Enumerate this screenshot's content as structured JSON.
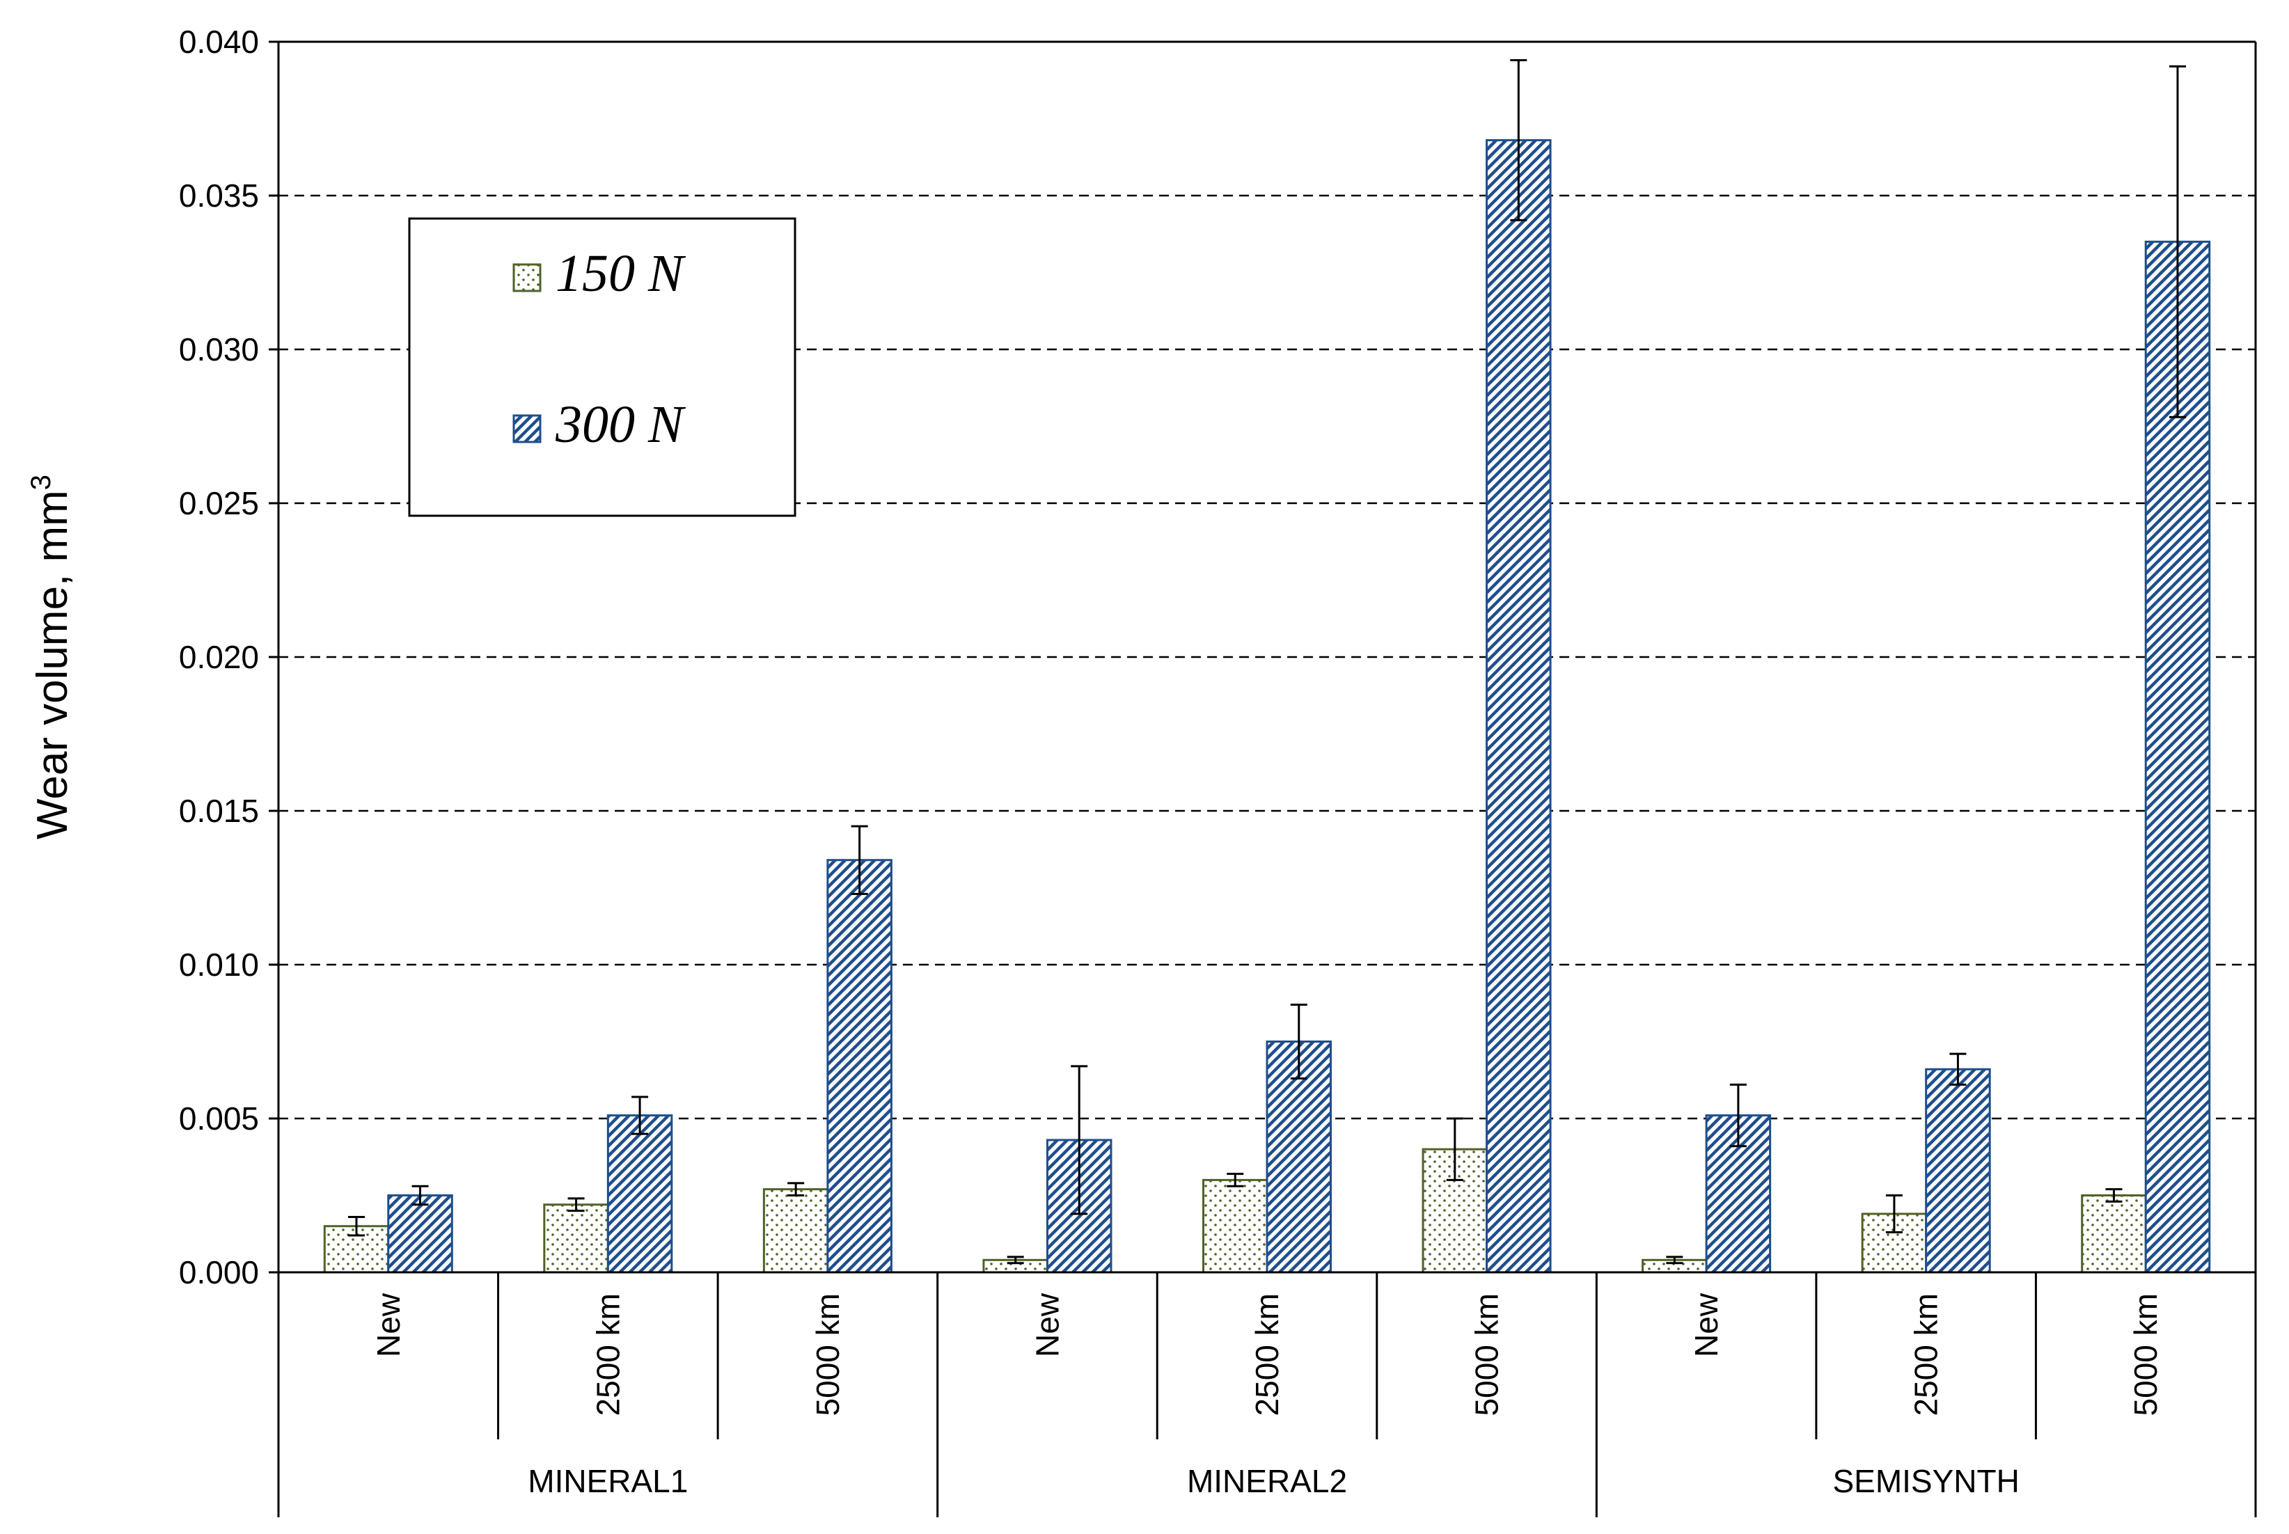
{
  "chart_data": {
    "type": "bar",
    "ylabel": "Wear volume, mm",
    "ylabel_sup": "3",
    "ylim": [
      0,
      0.04
    ],
    "yticks": [
      "0.000",
      "0.005",
      "0.010",
      "0.015",
      "0.020",
      "0.025",
      "0.030",
      "0.035",
      "0.040"
    ],
    "ytick_values": [
      0,
      0.005,
      0.01,
      0.015,
      0.02,
      0.025,
      0.03,
      0.035,
      0.04
    ],
    "grid": "horizontal dashed",
    "legend_position": "upper-left",
    "groups": [
      "MINERAL1",
      "MINERAL2",
      "SEMISYNTH"
    ],
    "categories": [
      "New",
      "2500 km",
      "5000 km",
      "New",
      "2500 km",
      "5000 km",
      "New",
      "2500 km",
      "5000 km"
    ],
    "series": [
      {
        "name": "150 N",
        "pattern": "dots",
        "edge_color": "#4f6228",
        "values": [
          0.0015,
          0.0022,
          0.0027,
          0.0004,
          0.003,
          0.004,
          0.0004,
          0.0019,
          0.0025
        ],
        "error": [
          0.0003,
          0.0002,
          0.0002,
          0.0001,
          0.0002,
          0.001,
          0.0001,
          0.0006,
          0.0002
        ]
      },
      {
        "name": "300 N",
        "pattern": "diagonal-hatch",
        "edge_color": "#1f4e8c",
        "values": [
          0.0025,
          0.0051,
          0.0134,
          0.0043,
          0.0075,
          0.0368,
          0.0051,
          0.0066,
          0.0335
        ],
        "error": [
          0.0003,
          0.0006,
          0.0011,
          0.0024,
          0.0012,
          0.0026,
          0.001,
          0.0005,
          0.0057
        ]
      }
    ]
  }
}
